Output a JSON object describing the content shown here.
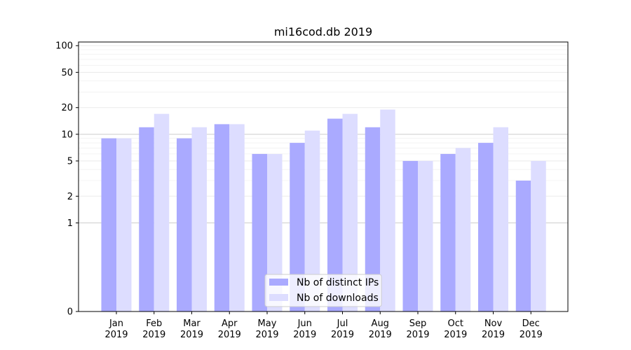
{
  "chart_data": {
    "type": "bar",
    "title": "mi16cod.db 2019",
    "xlabel": "",
    "ylabel": "",
    "yscale": "symlog",
    "ylim": [
      0,
      110
    ],
    "yticks": [
      0,
      1,
      2,
      5,
      10,
      20,
      50,
      100
    ],
    "ytick_labels": [
      "0",
      "1",
      "2",
      "5",
      "10",
      "20",
      "50",
      "100"
    ],
    "categories": [
      "Jan\n2019",
      "Feb\n2019",
      "Mar\n2019",
      "Apr\n2019",
      "May\n2019",
      "Jun\n2019",
      "Jul\n2019",
      "Aug\n2019",
      "Sep\n2019",
      "Oct\n2019",
      "Nov\n2019",
      "Dec\n2019"
    ],
    "series": [
      {
        "name": "Nb of distinct IPs",
        "color": "#aaaaff",
        "values": [
          9,
          12,
          9,
          13,
          6,
          8,
          15,
          12,
          5,
          6,
          8,
          3
        ]
      },
      {
        "name": "Nb of downloads",
        "color": "#ddddff",
        "values": [
          9,
          17,
          12,
          13,
          6,
          11,
          17,
          19,
          5,
          7,
          12,
          5
        ]
      }
    ],
    "legend_position": "bottom-center",
    "grid": true
  }
}
